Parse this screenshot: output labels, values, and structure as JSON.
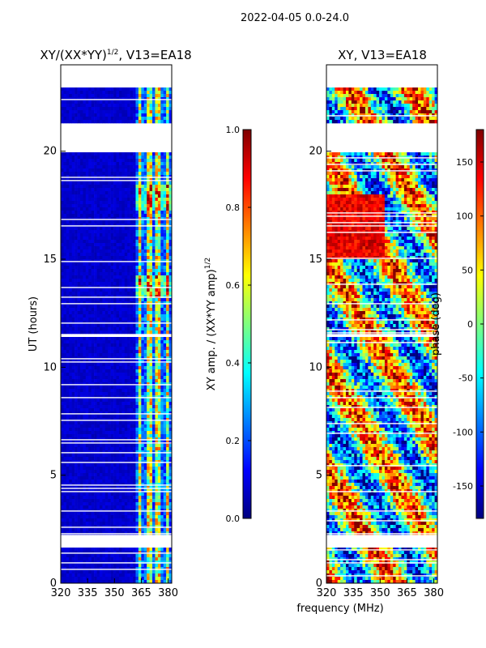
{
  "suptitle": "2022-04-05 0.0-24.0",
  "colors": {
    "jet": [
      "#00007f",
      "#0000ff",
      "#007fff",
      "#00ffff",
      "#7fff7f",
      "#ffff00",
      "#ff7f00",
      "#ff0000",
      "#7f0000"
    ],
    "plot_bg": "#00008b",
    "gap": "#ffffff"
  },
  "chart_data": [
    {
      "type": "heatmap",
      "title_main": "XY/(XX*YY)",
      "title_sup": "1/2",
      "title_tail": ", V13=EA18",
      "xlabel": "",
      "ylabel": "UT (hours)",
      "xlim": [
        320,
        382
      ],
      "ylim": [
        0,
        24
      ],
      "xticks": [
        320,
        335,
        350,
        365,
        380
      ],
      "yticks": [
        0,
        5,
        10,
        15,
        20
      ],
      "data_gap_hours": [
        [
          20.0,
          21.3
        ],
        [
          23.0,
          24.0
        ],
        [
          1.6,
          2.2
        ],
        [
          11.4,
          11.6
        ]
      ],
      "colorbar": {
        "label_main": "XY amp. / (XX*YY amp)",
        "label_sup": "1/2",
        "range": [
          0.0,
          1.0
        ],
        "ticks": [
          "0.0",
          "0.2",
          "0.4",
          "0.6",
          "0.8",
          "1.0"
        ]
      }
    },
    {
      "type": "heatmap",
      "title": "XY, V13=EA18",
      "xlabel": "frequency (MHz)",
      "ylabel": "",
      "xlim": [
        320,
        382
      ],
      "ylim": [
        0,
        24
      ],
      "xticks": [
        320,
        335,
        350,
        365,
        380
      ],
      "yticks": [
        0,
        5,
        10,
        15,
        20
      ],
      "data_gap_hours": [
        [
          20.0,
          21.3
        ],
        [
          23.0,
          24.0
        ],
        [
          1.6,
          2.2
        ],
        [
          11.4,
          11.6
        ]
      ],
      "colorbar": {
        "label": "phase (deg)",
        "range": [
          -180,
          180
        ],
        "ticks": [
          "-150",
          "-100",
          "-50",
          "0",
          "50",
          "100",
          "150"
        ]
      }
    }
  ]
}
